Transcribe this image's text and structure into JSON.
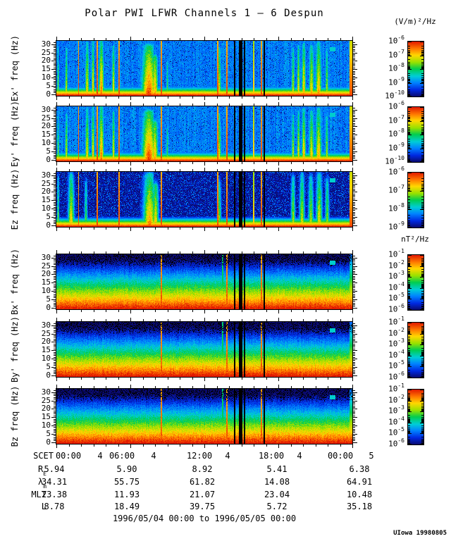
{
  "title": "Polar PWI LFWR Channels 1 — 6 Despun",
  "units_electric": "(V/m)²/Hz",
  "units_magnetic": "nT²/Hz",
  "date_range": "1996/05/04 00:00 to 1996/05/05 00:00",
  "credit": "UIowa 19980805",
  "chart_data": {
    "type": "heatmap",
    "title": "Polar PWI LFWR Channels 1 — 6 Despun",
    "x_label": "SCET",
    "ylim": [
      0,
      32
    ],
    "yticks": [
      30,
      25,
      20,
      15,
      10,
      5,
      0
    ],
    "x_ticks": [
      {
        "time": "00:00",
        "day": "4"
      },
      {
        "time": "06:00",
        "day": "4"
      },
      {
        "time": "12:00",
        "day": "4"
      },
      {
        "time": "18:00",
        "day": "4"
      },
      {
        "time": "00:00",
        "day": "5"
      }
    ],
    "panels": [
      {
        "ylabel": "Ex' freq (Hz)",
        "profile": "e-blue",
        "units": "(V/m)²/Hz",
        "colorbar": {
          "exponents": [
            -6,
            -7,
            -8,
            -9,
            -10
          ]
        }
      },
      {
        "ylabel": "Ey' freq (Hz)",
        "profile": "e-blue",
        "units": "(V/m)²/Hz",
        "colorbar": {
          "exponents": [
            -6,
            -7,
            -8,
            -9,
            -10
          ]
        }
      },
      {
        "ylabel": "Ez freq (Hz)",
        "profile": "e-dark",
        "units": "(V/m)²/Hz",
        "colorbar": {
          "exponents": [
            -6,
            -7,
            -8,
            -9
          ]
        }
      },
      {
        "ylabel": "Bx' freq (Hz)",
        "profile": "b-grad",
        "units": "nT²/Hz",
        "colorbar": {
          "exponents": [
            -1,
            -2,
            -3,
            -4,
            -5,
            -6
          ]
        }
      },
      {
        "ylabel": "By' freq (Hz)",
        "profile": "b-grad",
        "units": "nT²/Hz",
        "colorbar": {
          "exponents": [
            -1,
            -2,
            -3,
            -4,
            -5,
            -6
          ]
        }
      },
      {
        "ylabel": "Bz freq (Hz)",
        "profile": "b-grad",
        "units": "nT²/Hz",
        "colorbar": {
          "exponents": [
            -1,
            -2,
            -3,
            -4,
            -5,
            -6
          ]
        }
      }
    ],
    "ephemeris": [
      {
        "label": "R",
        "sub": "E",
        "values": [
          "5.94",
          "5.90",
          "8.92",
          "5.41",
          "6.38"
        ]
      },
      {
        "label": "λ",
        "sub": "m",
        "values": [
          "34.31",
          "55.75",
          "61.82",
          "14.08",
          "64.91"
        ]
      },
      {
        "label": "MLT",
        "sub": "",
        "values": [
          "23.38",
          "11.93",
          "21.07",
          "23.04",
          "10.48"
        ]
      },
      {
        "label": "L",
        "sub": "",
        "values": [
          "8.78",
          "18.49",
          "39.75",
          "5.72",
          "35.18"
        ]
      }
    ],
    "colormap": [
      [
        0.0,
        "#0a0a6e"
      ],
      [
        0.12,
        "#0028e1"
      ],
      [
        0.25,
        "#0082ff"
      ],
      [
        0.37,
        "#00cdd7"
      ],
      [
        0.5,
        "#00cd50"
      ],
      [
        0.62,
        "#96e100"
      ],
      [
        0.75,
        "#ffd700"
      ],
      [
        0.87,
        "#ff7800"
      ],
      [
        1.0,
        "#e11900"
      ]
    ],
    "features": {
      "e_bursts": [
        [
          0.006,
          2,
          0.65,
          0.9
        ],
        [
          0.034,
          3,
          0.72,
          0.85
        ],
        [
          0.104,
          4,
          0.8,
          0.95
        ],
        [
          0.124,
          3,
          0.85,
          1.0
        ],
        [
          0.152,
          5,
          0.92,
          1.0
        ],
        [
          0.193,
          3,
          0.8,
          0.9
        ],
        [
          0.212,
          2,
          0.9,
          1.0
        ],
        [
          0.313,
          14,
          0.97,
          0.9
        ],
        [
          0.333,
          6,
          0.85,
          0.7
        ],
        [
          0.375,
          2,
          0.6,
          0.6
        ],
        [
          0.55,
          4,
          0.75,
          0.85
        ],
        [
          0.8,
          3,
          0.72,
          0.85
        ],
        [
          0.818,
          3,
          0.8,
          0.9
        ],
        [
          0.836,
          4,
          0.85,
          0.95
        ],
        [
          0.862,
          5,
          0.8,
          0.9
        ],
        [
          0.886,
          6,
          0.85,
          0.95
        ],
        [
          0.914,
          3,
          0.7,
          0.8
        ]
      ],
      "ez_bursts": [
        [
          0.006,
          2,
          0.65,
          0.9
        ],
        [
          0.05,
          6,
          0.8,
          0.95
        ],
        [
          0.1,
          3,
          0.6,
          0.8
        ],
        [
          0.315,
          12,
          0.88,
          0.95
        ],
        [
          0.335,
          6,
          0.8,
          0.75
        ],
        [
          0.55,
          4,
          0.65,
          0.8
        ],
        [
          0.8,
          4,
          0.7,
          0.9
        ],
        [
          0.83,
          5,
          0.75,
          0.95
        ],
        [
          0.86,
          5,
          0.7,
          0.9
        ],
        [
          0.888,
          6,
          0.78,
          0.95
        ],
        [
          0.915,
          4,
          0.65,
          0.85
        ]
      ],
      "red_lines": [
        0.075,
        0.138,
        0.212,
        0.355,
        0.545,
        0.576,
        0.693
      ],
      "b_red_lines": [
        0.355,
        0.576,
        0.693
      ],
      "b_green_lines": [
        0.562
      ],
      "orange_lines": [
        0.667
      ],
      "gaps": [
        [
          0.602,
          1
        ],
        [
          0.622,
          4
        ],
        [
          0.635,
          1
        ],
        [
          0.702,
          1
        ]
      ],
      "marker": {
        "p": 0.933,
        "freq": 27
      }
    }
  }
}
